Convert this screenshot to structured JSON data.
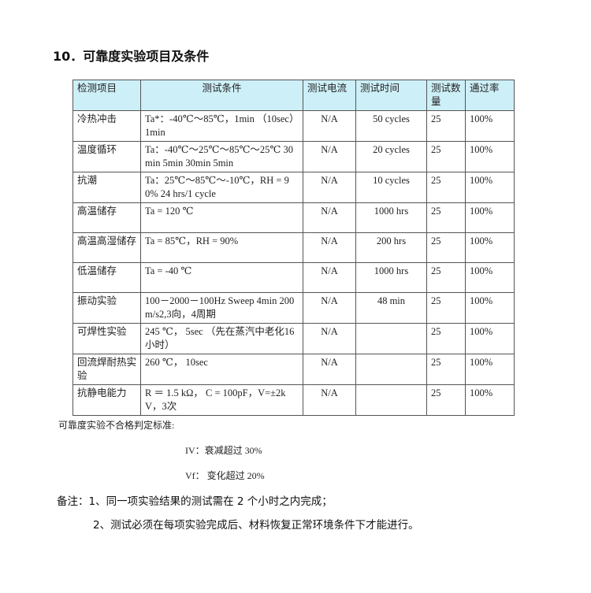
{
  "title": "10．可靠度实验项目及条件",
  "table": {
    "headers": [
      "检测项目",
      "测试条件",
      "测试电流",
      "测试时间",
      "测试数量",
      "通过率"
    ],
    "rows": [
      [
        "冷热冲击",
        "Ta*：-40℃～85℃，1min （10sec）1min",
        "N/A",
        "50 cycles",
        "25",
        "100%"
      ],
      [
        "温度循环",
        "Ta：-40℃～25℃～85℃～25℃ 30min 5min 30min 5min",
        "N/A",
        "20 cycles",
        "25",
        "100%"
      ],
      [
        "抗潮",
        "Ta：25℃～85℃～-10℃，RH = 90%  24 hrs/1 cycle",
        "N/A",
        "10 cycles",
        "25",
        "100%"
      ],
      [
        "高温储存",
        "Ta = 120 ℃",
        "N/A",
        "1000 hrs",
        "25",
        "100%"
      ],
      [
        "高温高湿储存",
        "Ta = 85℃，RH = 90%",
        "N/A",
        "200 hrs",
        "25",
        "100%"
      ],
      [
        "低温储存",
        "Ta = -40 ℃",
        "N/A",
        "1000 hrs",
        "25",
        "100%"
      ],
      [
        "振动实验",
        "100－2000－100Hz Sweep 4min 200m/s2,3向，4周期",
        "N/A",
        "48 min",
        "25",
        "100%"
      ],
      [
        "可焊性实验",
        "245 ℃， 5sec （先在蒸汽中老化16小时）",
        "N/A",
        "",
        "25",
        "100%"
      ],
      [
        "回流焊耐热实验",
        "260 ℃， 10sec",
        "N/A",
        "",
        "25",
        "100%"
      ],
      [
        "抗静电能力",
        "R ＝ 1.5 kΩ， C = 100pF，V=±2kV，3次",
        "N/A",
        "",
        "25",
        "100%"
      ]
    ]
  },
  "criteria": {
    "heading": "可靠度实验不合格判定标准:",
    "items": [
      "IV：衰减超过 30%",
      "Vf： 变化超过 20%"
    ]
  },
  "remarks": [
    "备注：1、同一项实验结果的测试需在 2 个小时之内完成；",
    "2、测试必须在每项实验完成后、材料恢复正常环境条件下才能进行。"
  ],
  "colors": {
    "header_bg": "#cdeff7"
  }
}
